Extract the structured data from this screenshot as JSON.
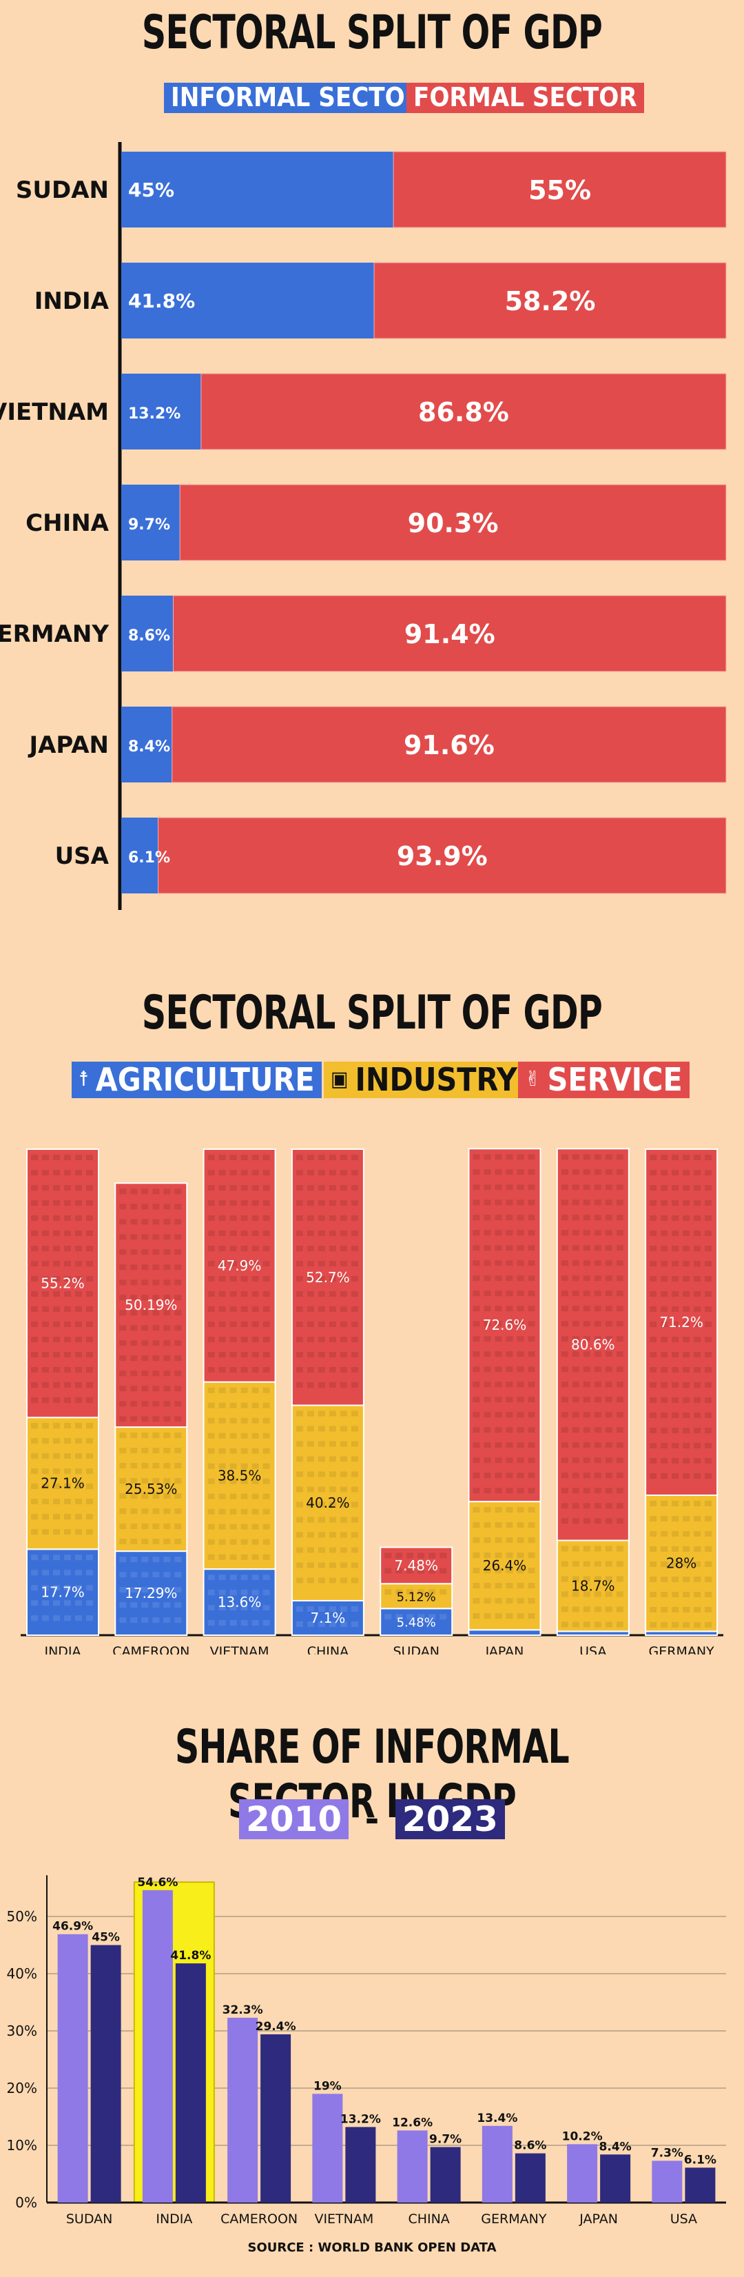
{
  "colors": {
    "background": "#fcd9b2",
    "informal": "#3a6fd8",
    "formal": "#e24b4b",
    "agriculture": "#3a6fd8",
    "industry": "#f2be2e",
    "service": "#e24b4b",
    "y2010": "#8f79e6",
    "y2023": "#2e2a7e",
    "highlight": "#f7ee1a"
  },
  "icons": {
    "agriculture": "wheat-icon",
    "industry": "factory-icon",
    "service": "handshake-icon"
  },
  "section1": {
    "title": "SECTORAL SPLIT OF GDP",
    "legend_informal": "INFORMAL SECTOR",
    "legend_formal": "FORMAL SECTOR"
  },
  "section2": {
    "title": "SECTORAL SPLIT OF GDP",
    "legend_agriculture": "AGRICULTURE",
    "legend_industry": "INDUSTRY",
    "legend_service": "SERVICE"
  },
  "section3": {
    "title": "SHARE OF INFORMAL SECTOR IN GDP",
    "year_start": "2010",
    "dash": "-",
    "year_end": "2023",
    "source": "SOURCE : WORLD BANK OPEN DATA"
  },
  "chart_data": [
    {
      "type": "bar",
      "orientation": "horizontal",
      "stacked": true,
      "title": "SECTORAL SPLIT OF GDP",
      "categories": [
        "SUDAN",
        "INDIA",
        "VIETNAM",
        "CHINA",
        "GERMANY",
        "JAPAN",
        "USA"
      ],
      "series": [
        {
          "name": "INFORMAL SECTOR",
          "values": [
            45,
            41.8,
            13.2,
            9.7,
            8.6,
            8.4,
            6.1
          ],
          "labels": [
            "45%",
            "41.8%",
            "13.2%",
            "9.7%",
            "8.6%",
            "8.4%",
            "6.1%"
          ]
        },
        {
          "name": "FORMAL SECTOR",
          "values": [
            55,
            58.2,
            86.8,
            90.3,
            91.4,
            91.6,
            93.9
          ],
          "labels": [
            "55%",
            "58.2%",
            "86.8%",
            "90.3%",
            "91.4%",
            "91.6%",
            "93.9%"
          ]
        }
      ],
      "xlim": [
        0,
        100
      ]
    },
    {
      "type": "bar",
      "orientation": "vertical",
      "stacked": true,
      "title": "SECTORAL SPLIT OF GDP",
      "categories": [
        "INDIA",
        "CAMEROON",
        "VIETNAM",
        "CHINA",
        "SUDAN",
        "JAPAN",
        "USA",
        "GERMANY"
      ],
      "series": [
        {
          "name": "AGRICULTURE",
          "values": [
            17.7,
            17.29,
            13.6,
            7.1,
            5.48,
            1.1,
            0.8,
            0.8
          ],
          "labels": [
            "17.7%",
            "17.29%",
            "13.6%",
            "7.1%",
            "5.48%",
            "1.1%",
            "0.8%",
            "0.8%"
          ]
        },
        {
          "name": "INDUSTRY",
          "values": [
            27.1,
            25.53,
            38.5,
            40.2,
            5.12,
            26.4,
            18.7,
            28
          ],
          "labels": [
            "27.1%",
            "25.53%",
            "38.5%",
            "40.2%",
            "5.12%",
            "26.4%",
            "18.7%",
            "28%"
          ]
        },
        {
          "name": "SERVICE",
          "values": [
            55.2,
            50.19,
            47.9,
            52.7,
            7.48,
            72.6,
            80.6,
            71.2
          ],
          "labels": [
            "55.2%",
            "50.19%",
            "47.9%",
            "52.7%",
            "7.48%",
            "72.6%",
            "80.6%",
            "71.2%"
          ]
        }
      ]
    },
    {
      "type": "bar",
      "orientation": "vertical",
      "grouped": true,
      "title": "SHARE OF INFORMAL SECTOR IN GDP",
      "categories": [
        "SUDAN",
        "INDIA",
        "CAMEROON",
        "VIETNAM",
        "CHINA",
        "GERMANY",
        "JAPAN",
        "USA"
      ],
      "series": [
        {
          "name": "2010",
          "values": [
            46.9,
            54.6,
            32.3,
            19,
            12.6,
            13.4,
            10.2,
            7.3
          ],
          "labels": [
            "46.9%",
            "54.6%",
            "32.3%",
            "19%",
            "12.6%",
            "13.4%",
            "10.2%",
            "7.3%"
          ]
        },
        {
          "name": "2023",
          "values": [
            45,
            41.8,
            29.4,
            13.2,
            9.7,
            8.6,
            8.4,
            6.1
          ],
          "labels": [
            "45%",
            "41.8%",
            "29.4%",
            "13.2%",
            "9.7%",
            "8.6%",
            "8.4%",
            "6.1%"
          ]
        }
      ],
      "ylim": [
        0,
        56
      ],
      "yticks": [
        "0%",
        "10%",
        "20%",
        "30%",
        "40%",
        "50%"
      ],
      "ytick_values": [
        0,
        10,
        20,
        30,
        40,
        50
      ],
      "grid": true,
      "highlight_category": "INDIA"
    }
  ]
}
